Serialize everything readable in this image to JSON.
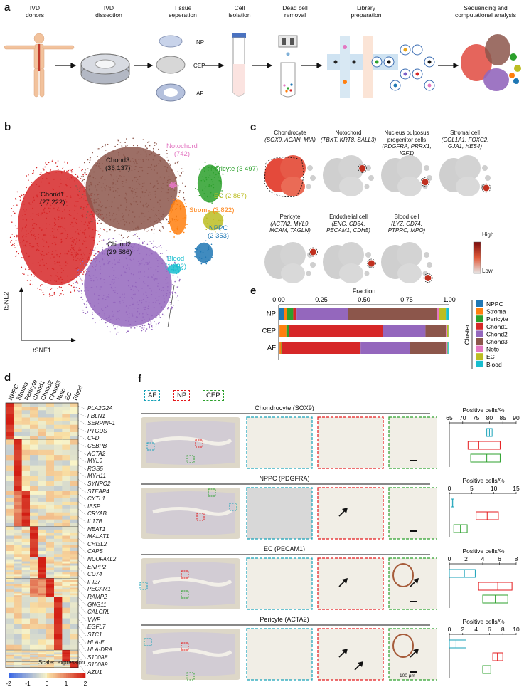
{
  "panel_a": {
    "label": "a",
    "steps": [
      "IVD\ndonors",
      "IVD\ndissection",
      "Tissue\nseperation",
      "Cell\nisolation",
      "Dead cell\nremoval",
      "Library\npreparation",
      "Sequencing and\ncomputational analysis"
    ],
    "tissues": [
      "NP",
      "CEP",
      "AF"
    ]
  },
  "panel_b": {
    "label": "b",
    "xlabel": "tSNE1",
    "ylabel": "tSNE2",
    "clusters": [
      {
        "name": "Chond1",
        "count": "(27 222)",
        "color": "#d62728"
      },
      {
        "name": "Chond3",
        "count": "(36 137)",
        "color": "#8c564b"
      },
      {
        "name": "Chond2",
        "count": "(29 586)",
        "color": "#9467bd"
      },
      {
        "name": "Notochord",
        "count": "(742)",
        "color": "#e377c2"
      },
      {
        "name": "Pericyte",
        "count": "(3 497)",
        "color": "#2ca02c"
      },
      {
        "name": "EC",
        "count": "(2 867)",
        "color": "#bcbd22"
      },
      {
        "name": "Stroma",
        "count": "(3 822)",
        "color": "#ff7f0e"
      },
      {
        "name": "NPPC",
        "count": "(2 353)",
        "color": "#1f77b4"
      },
      {
        "name": "Blood",
        "count": "(1 332)",
        "color": "#17becf"
      }
    ]
  },
  "panel_c": {
    "label": "c",
    "markers": [
      {
        "title": "Chondrocyte",
        "genes": "SOX9, ACAN, MIA"
      },
      {
        "title": "Notochord",
        "genes": "TBXT, KRT8, SALL3"
      },
      {
        "title": "Nucleus pulposus\nprogenitor cells",
        "genes": "PDGFRA, PRRX1, IGF1"
      },
      {
        "title": "Stromal cell",
        "genes": "COL1A1, FOXC2,\nGJA1, HES4"
      },
      {
        "title": "Pericyte",
        "genes": "ACTA2, MYL9,\nMCAM, TAGLN"
      },
      {
        "title": "Endothelial cell",
        "genes": "ENG, CD34,\nPECAM1, CDH5"
      },
      {
        "title": "Blood cell",
        "genes": "LYZ, CD74,\nPTPRC, MPO"
      }
    ],
    "scale_high": "High",
    "scale_low": "Low"
  },
  "chart_data": [
    {
      "type": "bar",
      "orientation": "horizontal-stacked",
      "panel": "e",
      "title": "Fraction",
      "categories": [
        "NP",
        "CEP",
        "AF"
      ],
      "xlim": [
        0,
        1
      ],
      "ticks": [
        "0.00",
        "0.25",
        "0.50",
        "0.75",
        "1.00"
      ],
      "legend_title": "Cluster",
      "series": [
        {
          "name": "NPPC",
          "color": "#1f77b4",
          "values": [
            0.03,
            0.005,
            0.005
          ]
        },
        {
          "name": "Stroma",
          "color": "#ff7f0e",
          "values": [
            0.02,
            0.04,
            0.01
          ]
        },
        {
          "name": "Pericyte",
          "color": "#2ca02c",
          "values": [
            0.035,
            0.015,
            0.005
          ]
        },
        {
          "name": "Chond1",
          "color": "#d62728",
          "values": [
            0.02,
            0.55,
            0.46
          ]
        },
        {
          "name": "Chond2",
          "color": "#9467bd",
          "values": [
            0.3,
            0.25,
            0.29
          ]
        },
        {
          "name": "Chond3",
          "color": "#8c564b",
          "values": [
            0.52,
            0.12,
            0.21
          ]
        },
        {
          "name": "Noto",
          "color": "#e377c2",
          "values": [
            0.015,
            0.005,
            0.005
          ]
        },
        {
          "name": "EC",
          "color": "#bcbd22",
          "values": [
            0.04,
            0.01,
            0.005
          ]
        },
        {
          "name": "Blood",
          "color": "#17becf",
          "values": [
            0.02,
            0.005,
            0.005
          ]
        }
      ]
    },
    {
      "type": "heatmap",
      "panel": "d",
      "columns": [
        "NPPC",
        "Stroma",
        "Pericyte",
        "Chond1",
        "Chond2",
        "Chond3",
        "Noto",
        "EC",
        "Blood"
      ],
      "genes": [
        "PLA2G2A",
        "FBLN1",
        "SERPINF1",
        "PTGDS",
        "CFD",
        "CEBPB",
        "ACTA2",
        "MYL9",
        "RGS5",
        "MYH11",
        "SYNPO2",
        "STEAP4",
        "CYTL1",
        "IBSP",
        "CRYAB",
        "IL17B",
        "NEAT1",
        "MALAT1",
        "CHI3L2",
        "CAPS",
        "NDUFA4L2",
        "ENPP2",
        "CD74",
        "IFI27",
        "PECAM1",
        "RAMP2",
        "GNG11",
        "CALCRL",
        "VWF",
        "EGFL7",
        "STC1",
        "HLA-E",
        "HLA-DRA",
        "S100A8",
        "S100A9",
        "AZU1"
      ],
      "colorbar_label": "Scaled expression",
      "colorbar_ticks": [
        "-2",
        "-1",
        "0",
        "1",
        "2"
      ]
    },
    {
      "type": "box",
      "panel": "f",
      "groups": [
        "AF",
        "NP",
        "CEP"
      ],
      "group_colors": [
        "#17a2b8",
        "#e41a1c",
        "#2ca02c"
      ],
      "plots": [
        {
          "xlabel": "Positive cells/%",
          "ticks": [
            "65",
            "70",
            "75",
            "80",
            "85",
            "90"
          ],
          "xlim": [
            65,
            90
          ],
          "boxes": [
            [
              79,
              80,
              81
            ],
            [
              72,
              76,
              84
            ],
            [
              73,
              79,
              84
            ]
          ]
        },
        {
          "xlabel": "Positive cells/%",
          "ticks": [
            "0",
            "5",
            "10",
            "15"
          ],
          "xlim": [
            0,
            15
          ],
          "boxes": [
            [
              0.4,
              0.7,
              1.0
            ],
            [
              6,
              8.5,
              11
            ],
            [
              1,
              2.5,
              4
            ]
          ]
        },
        {
          "xlabel": "Positive cells/%",
          "ticks": [
            "0",
            "2",
            "4",
            "6",
            "8"
          ],
          "xlim": [
            0,
            8
          ],
          "boxes": [
            [
              0,
              1.8,
              3.1
            ],
            [
              3.5,
              5.8,
              7.5
            ],
            [
              4,
              5.5,
              7
            ]
          ]
        },
        {
          "xlabel": "Positive cells/%",
          "ticks": [
            "0",
            "2",
            "4",
            "6",
            "8",
            "10"
          ],
          "xlim": [
            0,
            10
          ],
          "boxes": [
            [
              0,
              1,
              2.5
            ],
            [
              6.5,
              7.2,
              8
            ],
            [
              5,
              5.8,
              6.2
            ]
          ]
        }
      ]
    }
  ],
  "panel_d": {
    "label": "d"
  },
  "panel_e": {
    "label": "e"
  },
  "panel_f": {
    "label": "f",
    "region_labels": [
      "AF",
      "NP",
      "CEP"
    ],
    "row_titles": [
      "Chondrocyte (SOX9)",
      "NPPC (PDGFRA)",
      "EC (PECAM1)",
      "Pericyte (ACTA2)"
    ],
    "scale_bar": "100 μm"
  }
}
